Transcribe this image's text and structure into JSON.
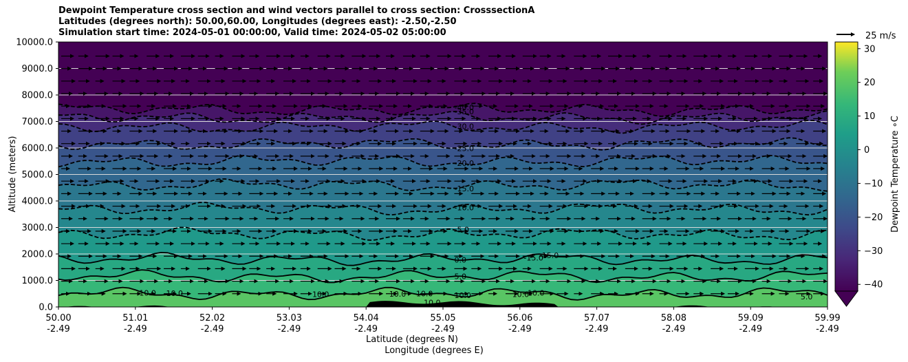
{
  "title_lines": [
    "Dewpoint Temperature cross section and wind vectors parallel to cross section: CrosssectionA",
    "Latitudes (degrees north): 50.00,60.00, Longitudes (degrees east): -2.50,-2.50",
    "Simulation start time: 2024-05-01 00:00:00, Valid time: 2024-05-02 05:00:00"
  ],
  "chart_data": {
    "type": "heatmap",
    "subtype": "vertical cross-section filled contour with contour lines and wind vectors",
    "ylabel": "Altitude (meters)",
    "xlabel_line1": "Latitude (degrees N)",
    "xlabel_line2": "Longitude (degrees E)",
    "ylim": [
      0,
      10000
    ],
    "yticks": [
      "0.0",
      "1000.0",
      "2000.0",
      "3000.0",
      "4000.0",
      "5000.0",
      "6000.0",
      "7000.0",
      "8000.0",
      "9000.0",
      "10000.0"
    ],
    "xlim": [
      50.0,
      59.99
    ],
    "xticks_lat": [
      "50.00",
      "51.01",
      "52.02",
      "53.03",
      "54.04",
      "55.05",
      "56.06",
      "57.07",
      "58.08",
      "59.09",
      "59.99"
    ],
    "xticks_lon": [
      "-2.49",
      "-2.49",
      "-2.49",
      "-2.49",
      "-2.49",
      "-2.49",
      "-2.49",
      "-2.49",
      "-2.49",
      "-2.49",
      "-2.49"
    ],
    "grid": "horizontal, at y ticks",
    "colorbar": {
      "label": "Dewpoint Temperature ∘C",
      "ticks": [
        "30",
        "20",
        "10",
        "0",
        "−10",
        "−20",
        "−30",
        "−40"
      ],
      "range": [
        -42,
        32
      ],
      "extend": "min",
      "colormap": "viridis"
    },
    "quiver_key": {
      "label": "25 m/s"
    },
    "contour_levels": [
      {
        "value": -40,
        "label": "-40.0",
        "altitude": 7450,
        "style": "dashed"
      },
      {
        "value": -35,
        "label": "-35.0",
        "altitude": 7150,
        "style": "dashed"
      },
      {
        "value": -30,
        "label": "-30.0",
        "altitude": 6800,
        "style": "dashed"
      },
      {
        "value": -25,
        "label": "-25.0",
        "altitude": 6150,
        "style": "dashed"
      },
      {
        "value": -20,
        "label": "-20.0",
        "altitude": 5500,
        "style": "dashed"
      },
      {
        "value": -15,
        "label": "-15.0",
        "altitude": 4600,
        "style": "dashed"
      },
      {
        "value": -10,
        "label": "-10.0",
        "altitude": 3700,
        "style": "dashed"
      },
      {
        "value": -5,
        "label": "-5.0",
        "altitude": 2750,
        "style": "dashed"
      },
      {
        "value": 0,
        "label": "0.0",
        "altitude": 1800,
        "style": "solid"
      },
      {
        "value": 5,
        "label": "5.0",
        "altitude": 1150,
        "style": "solid"
      },
      {
        "value": 10,
        "label": "10.0",
        "altitude": 500,
        "style": "solid"
      }
    ],
    "extra_contour_labels": [
      "10.0",
      "10.0",
      "10.0",
      "10.0",
      "10.0",
      "10.0",
      "10.0",
      "10.0",
      "-15.0",
      "-15.0",
      "5.0"
    ],
    "wind_vectors": "eastward (parallel to section), roughly uniform, on a regular grid"
  }
}
